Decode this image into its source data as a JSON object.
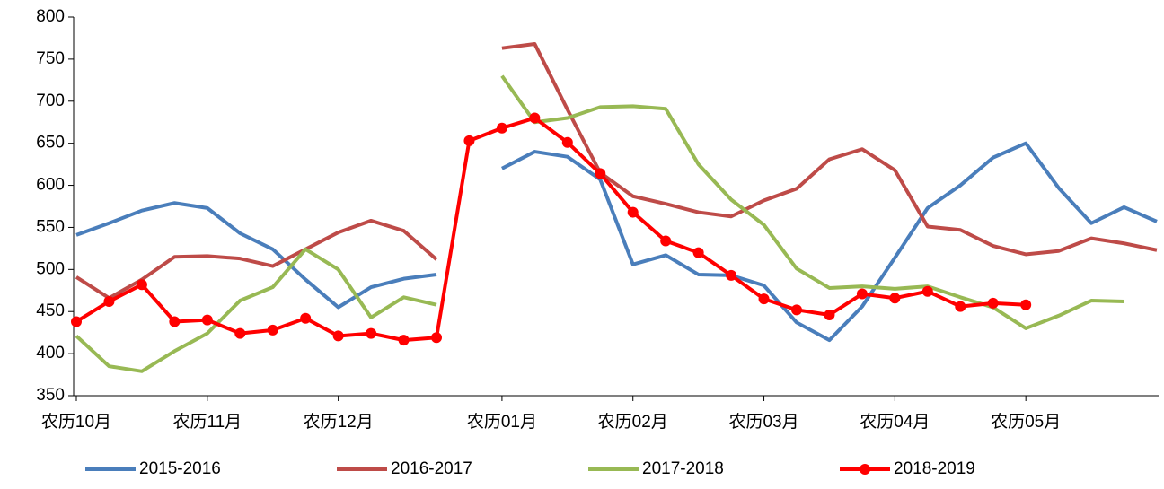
{
  "chart_data": {
    "type": "line",
    "categories": [
      "农历10月",
      null,
      null,
      null,
      "农历11月",
      null,
      null,
      null,
      "农历12月",
      null,
      null,
      null,
      null,
      "农历01月",
      null,
      null,
      null,
      "农历02月",
      null,
      null,
      null,
      "农历03月",
      null,
      null,
      null,
      "农历04月",
      null,
      null,
      null,
      "农历05月",
      null,
      null,
      null,
      null
    ],
    "series": [
      {
        "name": "2015-2016",
        "color": "#4a7ebb",
        "values": [
          541,
          555,
          570,
          579,
          573,
          543,
          524,
          488,
          455,
          479,
          489,
          494,
          null,
          620,
          640,
          634,
          607,
          506,
          517,
          494,
          493,
          481,
          437,
          416,
          456,
          514,
          573,
          600,
          633,
          650,
          597,
          555,
          574,
          557
        ]
      },
      {
        "name": "2016-2017",
        "color": "#be4b48",
        "values": [
          491,
          466,
          488,
          515,
          516,
          513,
          504,
          524,
          544,
          558,
          546,
          512,
          null,
          763,
          768,
          690,
          615,
          587,
          578,
          568,
          563,
          582,
          596,
          631,
          643,
          618,
          551,
          547,
          528,
          518,
          522,
          537,
          531,
          523
        ]
      },
      {
        "name": "2017-2018",
        "color": "#98b954",
        "values": [
          421,
          385,
          379,
          403,
          424,
          463,
          479,
          524,
          500,
          443,
          467,
          458,
          null,
          730,
          675,
          680,
          693,
          694,
          691,
          625,
          583,
          553,
          501,
          478,
          480,
          477,
          480,
          467,
          455,
          430,
          445,
          463,
          462,
          null
        ]
      },
      {
        "name": "2018-2019",
        "color": "#ff0000",
        "markers": true,
        "values": [
          438,
          462,
          482,
          438,
          440,
          424,
          428,
          442,
          421,
          424,
          416,
          419,
          653,
          668,
          680,
          651,
          614,
          568,
          534,
          520,
          493,
          465,
          452,
          446,
          471,
          466,
          474,
          456,
          460,
          458,
          null,
          null,
          null,
          null
        ]
      }
    ],
    "ylim": [
      350,
      800
    ],
    "yticks": [
      350,
      400,
      450,
      500,
      550,
      600,
      650,
      700,
      750,
      800
    ],
    "grid": false,
    "legend": "bottom"
  }
}
